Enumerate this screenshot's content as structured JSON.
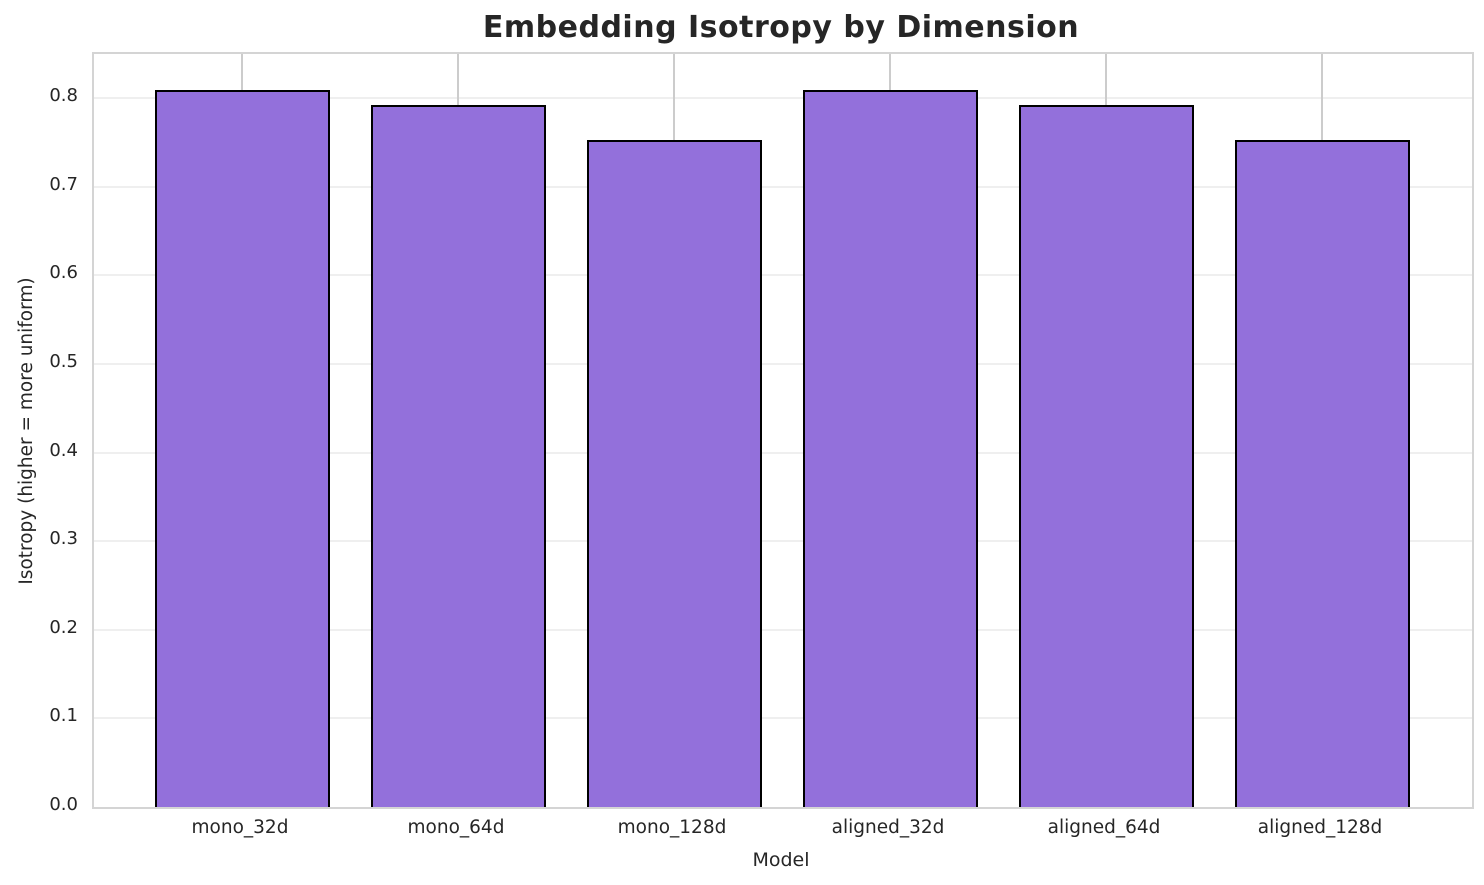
{
  "title": "Embedding Isotropy by Dimension",
  "chart_data": {
    "type": "bar",
    "title": "Embedding Isotropy by Dimension",
    "xlabel": "Model",
    "ylabel": "Isotropy (higher = more uniform)",
    "categories": [
      "mono_32d",
      "mono_64d",
      "mono_128d",
      "aligned_32d",
      "aligned_64d",
      "aligned_128d"
    ],
    "values": [
      0.809,
      0.793,
      0.753,
      0.809,
      0.793,
      0.753
    ],
    "ylim": [
      0,
      0.85
    ],
    "yticks": [
      0.0,
      0.1,
      0.2,
      0.3,
      0.4,
      0.5,
      0.6,
      0.7,
      0.8
    ],
    "grid": true,
    "legend": "none",
    "bar_color": "#9370DB",
    "bar_edge_color": "#000000",
    "grid_color_horizontal": "#efefef",
    "grid_color_vertical": "#cccccc",
    "spine_color": "#d4d4d4",
    "text_color": "#262626",
    "background_color": "#ffffff"
  }
}
